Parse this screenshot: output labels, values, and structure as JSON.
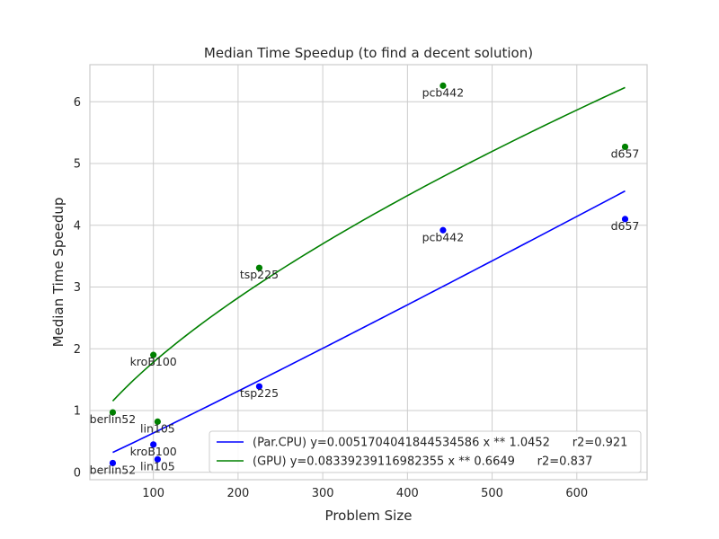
{
  "chart_data": {
    "type": "scatter",
    "title": "Median Time Speedup (to find a decent solution)",
    "xlabel": "Problem Size",
    "ylabel": "Median Time Speedup",
    "xlim": [
      25,
      683
    ],
    "ylim": [
      -0.12,
      6.6
    ],
    "xticks": [
      100,
      200,
      300,
      400,
      500,
      600
    ],
    "yticks": [
      0,
      1,
      2,
      3,
      4,
      5,
      6
    ],
    "grid": true,
    "legend_position": "lower-right",
    "series": [
      {
        "name": "(Par.CPU) y=0.0051704041844534586 x ** 1.0452      r2=0.921",
        "color": "#0000ff",
        "fit": {
          "a": 0.0051704041844534586,
          "b": 1.0452,
          "x_range": [
            52,
            657
          ]
        },
        "points": [
          {
            "label": "berlin52",
            "x": 52,
            "y": 0.15
          },
          {
            "label": "kroB100",
            "x": 100,
            "y": 0.45
          },
          {
            "label": "lin105",
            "x": 105,
            "y": 0.21
          },
          {
            "label": "tsp225",
            "x": 225,
            "y": 1.39
          },
          {
            "label": "pcb442",
            "x": 442,
            "y": 3.92
          },
          {
            "label": "d657",
            "x": 657,
            "y": 4.1
          }
        ]
      },
      {
        "name": "(GPU) y=0.08339239116982355 x ** 0.6649      r2=0.837",
        "color": "#008000",
        "fit": {
          "a": 0.08339239116982355,
          "b": 0.6649,
          "x_range": [
            52,
            657
          ]
        },
        "points": [
          {
            "label": "berlin52",
            "x": 52,
            "y": 0.97
          },
          {
            "label": "kroB100",
            "x": 100,
            "y": 1.9
          },
          {
            "label": "lin105",
            "x": 105,
            "y": 0.82
          },
          {
            "label": "tsp225",
            "x": 225,
            "y": 3.31
          },
          {
            "label": "pcb442",
            "x": 442,
            "y": 6.26
          },
          {
            "label": "d657",
            "x": 657,
            "y": 5.27
          }
        ]
      }
    ]
  }
}
